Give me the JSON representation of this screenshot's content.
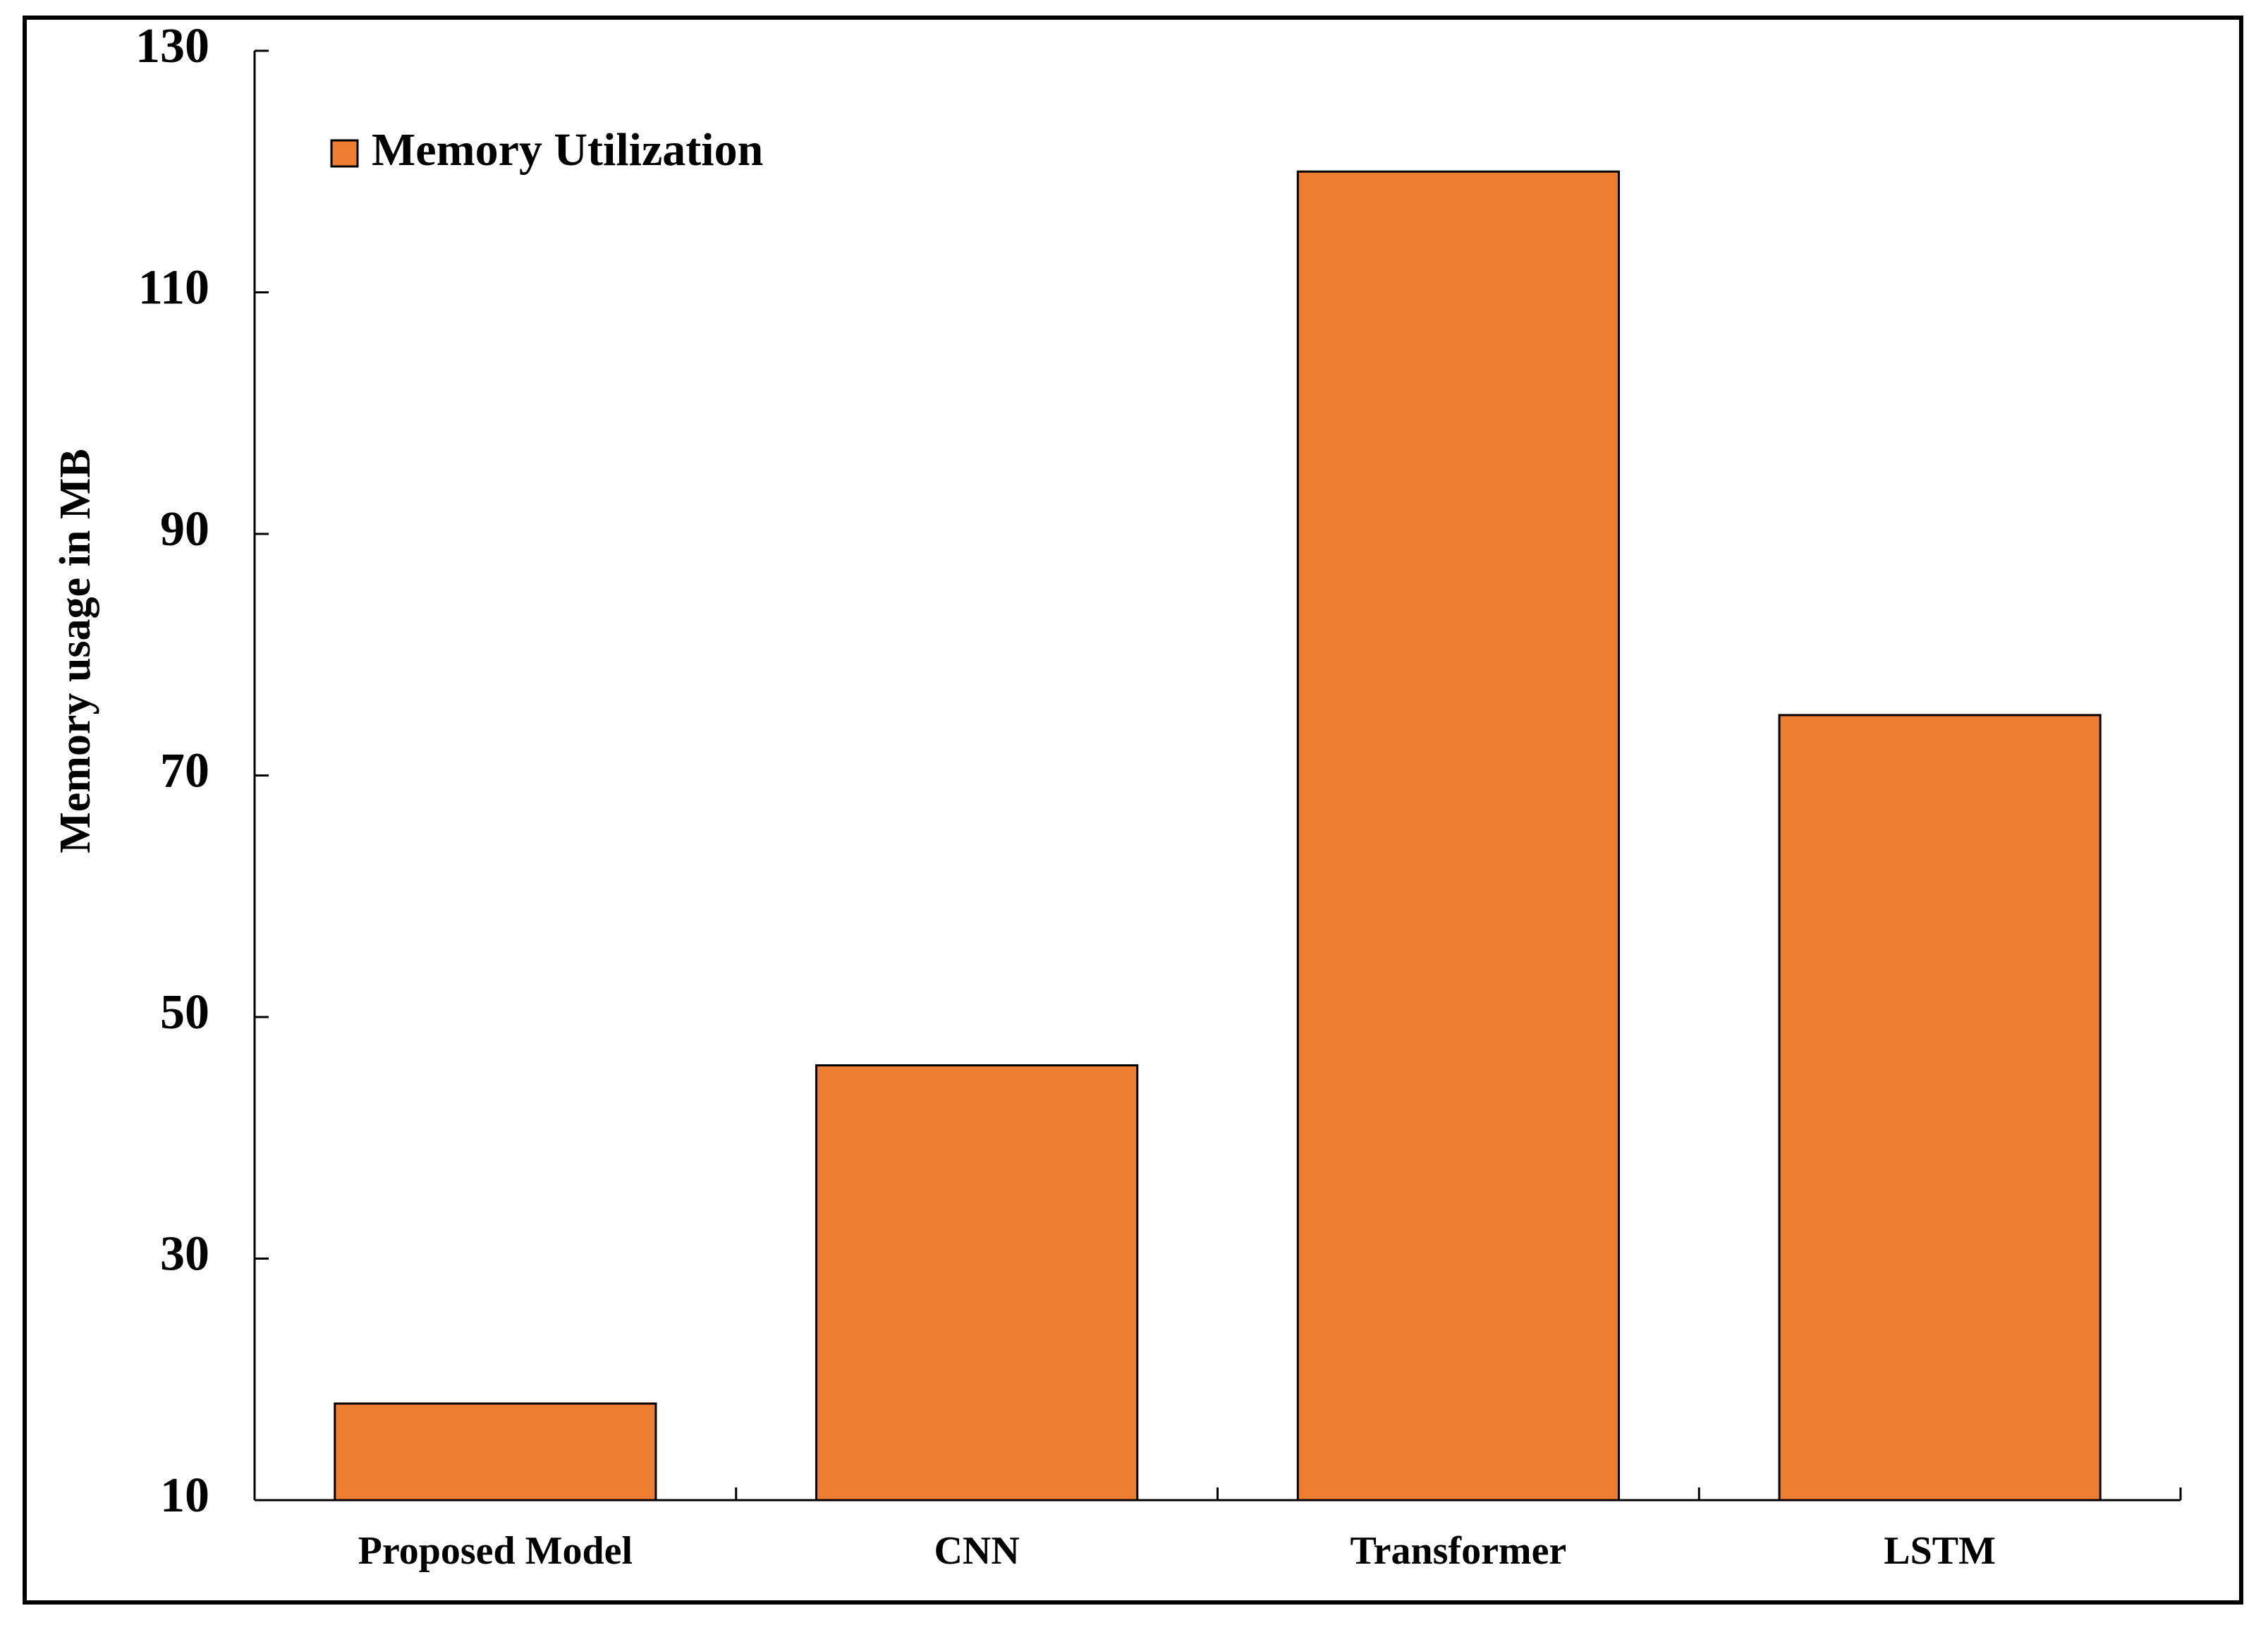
{
  "chart_data": {
    "type": "bar",
    "y_label": "Memory usage in MB",
    "categories": [
      "Proposed Model",
      "CNN",
      "Transformer",
      "LSTM"
    ],
    "series": [
      {
        "name": "Memory Utilization",
        "color": "#ed7d31",
        "values": [
          18,
          46,
          120,
          75
        ]
      }
    ],
    "ylim": [
      10,
      130
    ],
    "yticks": [
      10,
      30,
      50,
      70,
      90,
      110,
      130
    ],
    "grid": false,
    "legend": "upper left"
  }
}
